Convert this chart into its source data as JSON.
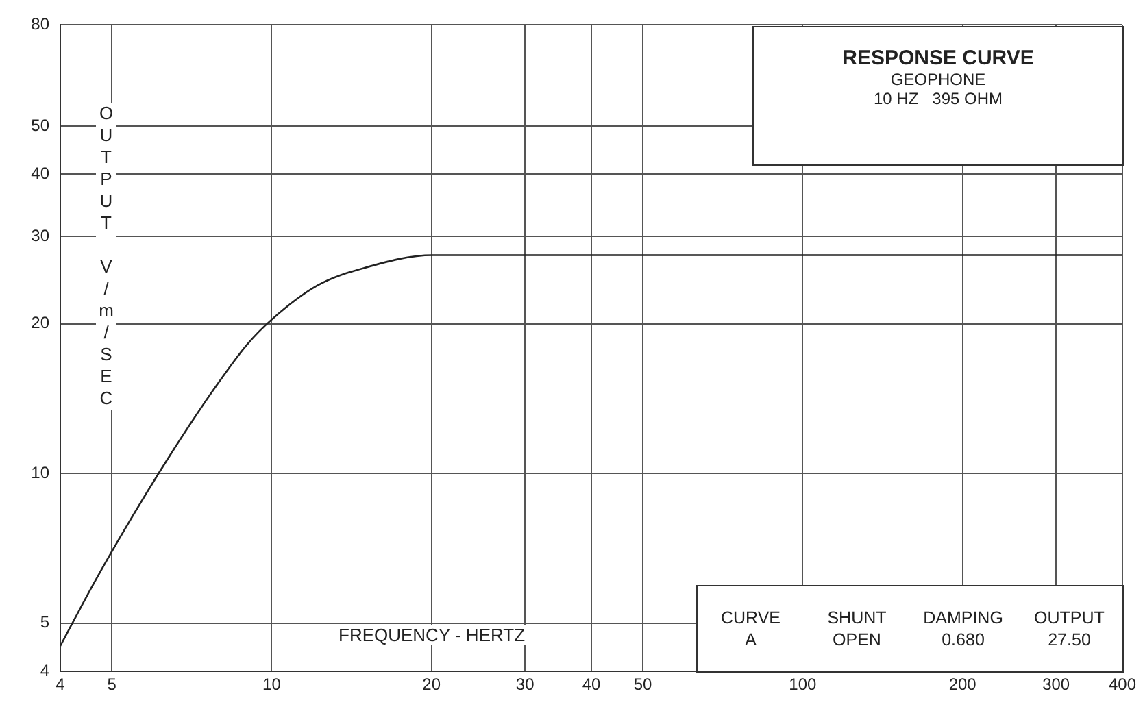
{
  "chart_data": {
    "type": "line",
    "title": "RESPONSE CURVE",
    "subtitle": "GEOPHONE",
    "xlabel": "FREQUENCY - HERTZ",
    "ylabel": "OUTPUT V/m/SEC",
    "annotations": [
      "10 HZ   395 OHM",
      "CURVE",
      "SHUNT",
      "DAMPING",
      "OUTPUT",
      "A",
      "OPEN",
      "0.680",
      "27.50"
    ],
    "log": "xy",
    "grid": true,
    "series": [
      {
        "color": "#222222",
        "x": [
          4.0,
          4.66,
          5.8,
          7.0,
          8.0,
          9.0,
          10.0,
          12.2,
          14.9,
          20.1,
          30,
          50,
          100,
          200,
          400
        ],
        "values": [
          4.5,
          6.1,
          9.1,
          12.5,
          15.4,
          18.2,
          20.4,
          23.9,
          25.9,
          27.5,
          27.5,
          27.5,
          27.5,
          27.5,
          27.5
        ]
      }
    ],
    "xlim": [
      4,
      400
    ],
    "xticks": [
      4,
      5,
      10,
      20,
      30,
      40,
      50,
      100,
      200,
      300,
      400
    ],
    "ylim": [
      4,
      80
    ],
    "yticks": [
      4,
      5,
      10,
      20,
      30,
      40,
      50,
      80
    ]
  }
}
